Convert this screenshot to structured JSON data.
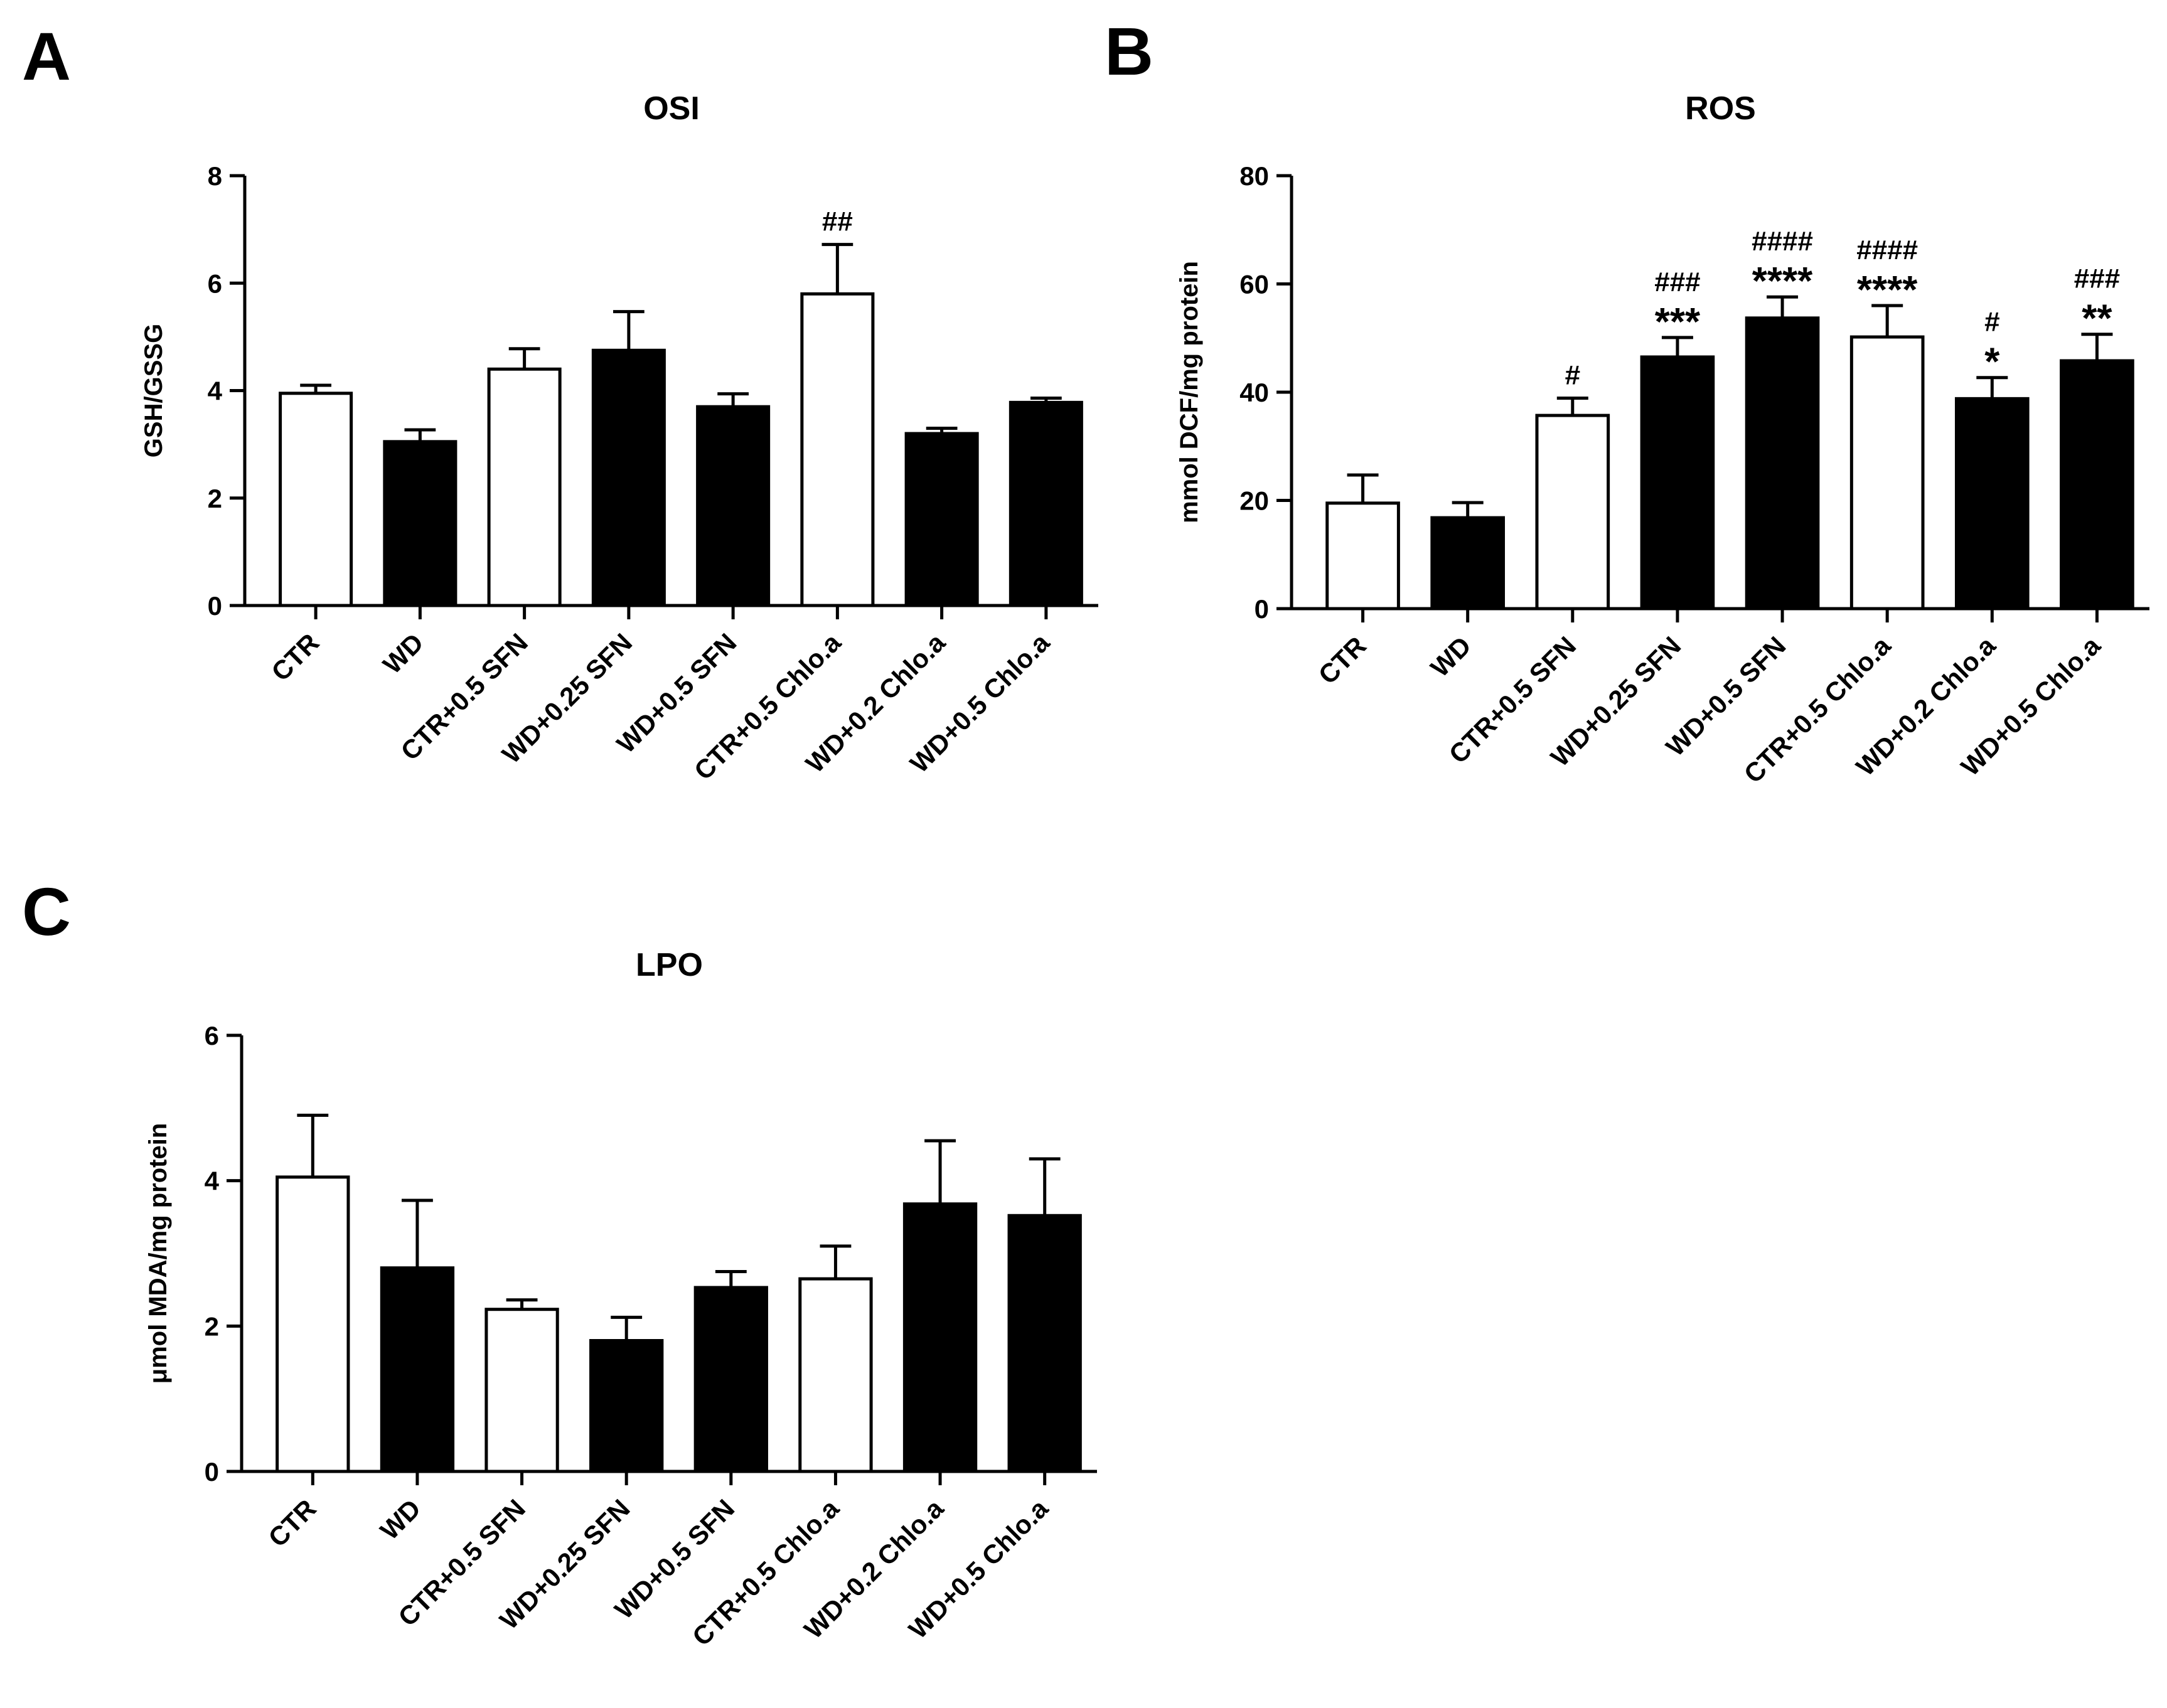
{
  "figure": {
    "panels": [
      "A",
      "B",
      "C"
    ]
  },
  "colors": {
    "black": "#000000",
    "white": "#ffffff"
  },
  "chart_data": [
    {
      "panel": "A",
      "type": "bar",
      "title": "OSI",
      "xlabel": "",
      "ylabel": "GSH/GSSG",
      "ylim": [
        0,
        8
      ],
      "yticks": [
        0,
        2,
        4,
        6,
        8
      ],
      "categories": [
        "CTR",
        "WD",
        "CTR+0.5 SFN",
        "WD+0.25 SFN",
        "WD+0.5 SFN",
        "CTR+0.5 Chlo.a",
        "WD+0.2 Chlo.a",
        "WD+0.5 Chlo.a"
      ],
      "values": [
        3.95,
        3.05,
        4.4,
        4.75,
        3.7,
        5.8,
        3.2,
        3.78
      ],
      "errors": [
        0.15,
        0.22,
        0.38,
        0.72,
        0.24,
        0.92,
        0.1,
        0.08
      ],
      "fills": [
        "white",
        "black",
        "white",
        "black",
        "black",
        "white",
        "black",
        "black"
      ],
      "annotations": [
        "",
        "",
        "",
        "",
        "",
        "##",
        "",
        ""
      ]
    },
    {
      "panel": "B",
      "type": "bar",
      "title": "ROS",
      "xlabel": "",
      "ylabel": "mmol DCF/mg protein",
      "ylim": [
        0,
        80
      ],
      "yticks": [
        0,
        20,
        40,
        60,
        80
      ],
      "categories": [
        "CTR",
        "WD",
        "CTR+0.5 SFN",
        "WD+0.25 SFN",
        "WD+0.5 SFN",
        "CTR+0.5 Chlo.a",
        "WD+0.2 Chlo.a",
        "WD+0.5 Chlo.a"
      ],
      "values": [
        19.5,
        16.8,
        35.7,
        46.5,
        53.7,
        50.2,
        38.8,
        45.8
      ],
      "errors": [
        5.2,
        2.8,
        3.2,
        3.6,
        3.9,
        5.8,
        3.9,
        4.9
      ],
      "fills": [
        "white",
        "black",
        "white",
        "black",
        "black",
        "white",
        "black",
        "black"
      ],
      "annotations": [
        "",
        "",
        "#",
        "###\n***",
        "####\n****",
        "####\n****",
        "#\n*",
        "###\n**"
      ]
    },
    {
      "panel": "C",
      "type": "bar",
      "title": "LPO",
      "xlabel": "",
      "ylabel": "μmol MDA/mg protein",
      "ylim": [
        0,
        6
      ],
      "yticks": [
        0,
        2,
        4,
        6
      ],
      "categories": [
        "CTR",
        "WD",
        "CTR+0.5 SFN",
        "WD+0.25 SFN",
        "WD+0.5 SFN",
        "CTR+0.5 Chlo.a",
        "WD+0.2 Chlo.a",
        "WD+0.5 Chlo.a"
      ],
      "values": [
        4.05,
        2.8,
        2.23,
        1.8,
        2.53,
        2.65,
        3.68,
        3.52
      ],
      "errors": [
        0.85,
        0.93,
        0.13,
        0.32,
        0.22,
        0.45,
        0.87,
        0.78
      ],
      "fills": [
        "white",
        "black",
        "white",
        "black",
        "black",
        "white",
        "black",
        "black"
      ],
      "annotations": [
        "",
        "",
        "",
        "",
        "",
        "",
        "",
        ""
      ]
    }
  ]
}
